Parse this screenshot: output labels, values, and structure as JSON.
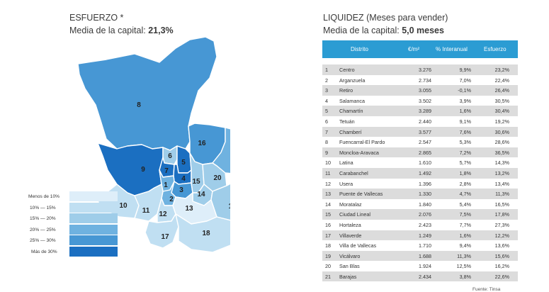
{
  "left_title": {
    "line1": "ESFUERZO *",
    "line2_prefix": "Media de la capital: ",
    "line2_value": "21,3%"
  },
  "right_title": {
    "line1": "LIQUIDEZ (Meses para vender)",
    "line2_prefix": "Media de la capital: ",
    "line2_value": "5,0 meses"
  },
  "legend": [
    {
      "label": "Menos de 10%",
      "color": "#deeef9"
    },
    {
      "label": "10%  —  15%",
      "color": "#c0dff2"
    },
    {
      "label": "15%  —  20%",
      "color": "#9fcde9"
    },
    {
      "label": "20%  —  25%",
      "color": "#6fb2e0"
    },
    {
      "label": "25%  —  30%",
      "color": "#4797d4"
    },
    {
      "label": "Más de 30%",
      "color": "#1b6fc1"
    }
  ],
  "chart_data": {
    "type": "table",
    "title": "LIQUIDEZ (Meses para vender)",
    "columns": [
      "",
      "Distrito",
      "€/m²",
      "% Interanual",
      "Esfuerzo"
    ],
    "rows": [
      {
        "n": "1",
        "name": "Centro",
        "price": "3.276",
        "inter": "9,9%",
        "esf": "23,2%"
      },
      {
        "n": "2",
        "name": "Arganzuela",
        "price": "2.734",
        "inter": "7,0%",
        "esf": "22,4%"
      },
      {
        "n": "3",
        "name": "Retiro",
        "price": "3.055",
        "inter": "-0,1%",
        "esf": "26,4%"
      },
      {
        "n": "4",
        "name": "Salamanca",
        "price": "3.502",
        "inter": "3,9%",
        "esf": "30,5%"
      },
      {
        "n": "5",
        "name": "Chamartín",
        "price": "3.289",
        "inter": "1,6%",
        "esf": "30,4%"
      },
      {
        "n": "6",
        "name": "Tetuán",
        "price": "2.440",
        "inter": "9,1%",
        "esf": "19,2%"
      },
      {
        "n": "7",
        "name": "Chamberí",
        "price": "3.577",
        "inter": "7,6%",
        "esf": "30,6%"
      },
      {
        "n": "8",
        "name": "Fuencarral-El Pardo",
        "price": "2.547",
        "inter": "5,3%",
        "esf": "28,6%"
      },
      {
        "n": "9",
        "name": "Moncloa-Aravaca",
        "price": "2.865",
        "inter": "7,2%",
        "esf": "36,5%"
      },
      {
        "n": "10",
        "name": "Latina",
        "price": "1.610",
        "inter": "5,7%",
        "esf": "14,3%"
      },
      {
        "n": "11",
        "name": "Carabanchel",
        "price": "1.492",
        "inter": "1,8%",
        "esf": "13,2%"
      },
      {
        "n": "12",
        "name": "Usera",
        "price": "1.396",
        "inter": "2,8%",
        "esf": "13,4%"
      },
      {
        "n": "13",
        "name": "Puente de Vallecas",
        "price": "1.330",
        "inter": "4,7%",
        "esf": "11,3%"
      },
      {
        "n": "14",
        "name": "Moratalaz",
        "price": "1.840",
        "inter": "5,4%",
        "esf": "16,5%"
      },
      {
        "n": "15",
        "name": "Ciudad Lineal",
        "price": "2.076",
        "inter": "7,5%",
        "esf": "17,8%"
      },
      {
        "n": "16",
        "name": "Hortaleza",
        "price": "2.423",
        "inter": "7,7%",
        "esf": "27,3%"
      },
      {
        "n": "17",
        "name": "Villaverde",
        "price": "1.249",
        "inter": "1,6%",
        "esf": "12,2%"
      },
      {
        "n": "18",
        "name": "Villa de Vallecas",
        "price": "1.710",
        "inter": "9,4%",
        "esf": "13,6%"
      },
      {
        "n": "19",
        "name": "Vicálvaro",
        "price": "1.688",
        "inter": "11,3%",
        "esf": "15,6%"
      },
      {
        "n": "20",
        "name": "San Blas",
        "price": "1.924",
        "inter": "12,5%",
        "esf": "16,2%"
      },
      {
        "n": "21",
        "name": "Barajas",
        "price": "2.434",
        "inter": "3,8%",
        "esf": "22,6%"
      }
    ]
  },
  "source": "Fuente: Tinsa"
}
